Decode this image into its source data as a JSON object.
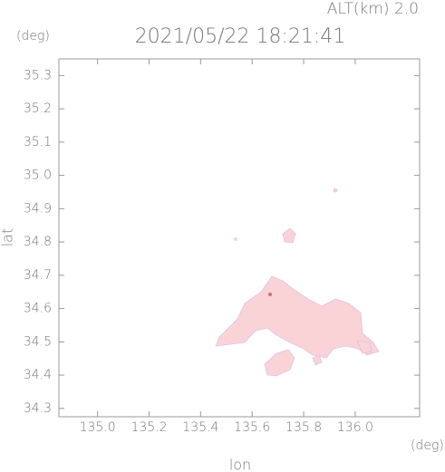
{
  "chart_data": {
    "type": "map",
    "title": "2021/05/22 18:21:41",
    "altitude_label": "ALT(km) 2.0",
    "y_unit": "(deg)",
    "x_unit": "(deg)",
    "xlabel": "lon",
    "ylabel": "lat",
    "xlim": [
      134.85,
      136.25
    ],
    "ylim": [
      34.275,
      35.35
    ],
    "xticks": [
      {
        "value": 135,
        "label": "135.0"
      },
      135.2,
      135.4,
      135.6,
      135.8,
      {
        "value": 136,
        "label": "136.0"
      }
    ],
    "yticks": [
      34.3,
      34.4,
      34.5,
      34.6,
      34.7,
      34.8,
      34.9,
      {
        "value": 35,
        "label": "35.0"
      },
      35.1,
      35.2,
      35.3
    ]
  }
}
